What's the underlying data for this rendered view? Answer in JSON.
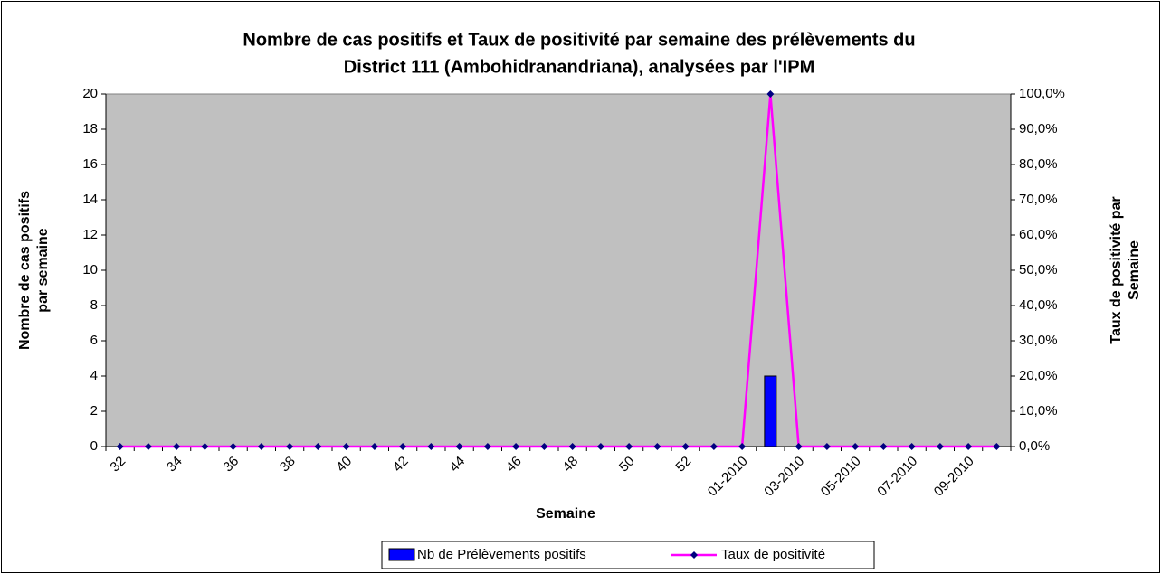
{
  "chart_data": {
    "type": "bar_line",
    "title": [
      "Nombre de cas positifs et Taux de positivité par semaine des prélèvements du",
      "District 111 (Ambohidranandriana), analysées par l'IPM"
    ],
    "x_label": "Semaine",
    "y_label": [
      "Nombre de cas positifs",
      "par semaine"
    ],
    "y2_label": [
      "Taux de positivité par",
      "Semaine"
    ],
    "categories": [
      "32",
      null,
      "34",
      null,
      "36",
      null,
      "38",
      null,
      "40",
      null,
      "42",
      null,
      "44",
      null,
      "46",
      null,
      "48",
      null,
      "50",
      null,
      "52",
      null,
      "01-2010",
      null,
      "03-2010",
      null,
      "05-2010",
      null,
      "07-2010",
      null,
      "09-2010",
      null
    ],
    "series": [
      {
        "name": "Nb de Prélèvements positifs",
        "type": "bar",
        "color": "#0000ff",
        "values": [
          0,
          0,
          0,
          0,
          0,
          0,
          0,
          0,
          0,
          0,
          0,
          0,
          0,
          0,
          0,
          0,
          0,
          0,
          0,
          0,
          0,
          0,
          0,
          4,
          0,
          0,
          0,
          0,
          0,
          0,
          0,
          0
        ]
      },
      {
        "name": "Taux de positivité",
        "type": "line",
        "axis": "y2",
        "color": "#ff00ff",
        "marker_color": "#000080",
        "values": [
          0,
          0,
          0,
          0,
          0,
          0,
          0,
          0,
          0,
          0,
          0,
          0,
          0,
          0,
          0,
          0,
          0,
          0,
          0,
          0,
          0,
          0,
          0,
          100,
          0,
          0,
          0,
          0,
          0,
          0,
          0,
          0
        ]
      }
    ],
    "ylim": [
      0,
      20
    ],
    "yticks": [
      0,
      2,
      4,
      6,
      8,
      10,
      12,
      14,
      16,
      18,
      20
    ],
    "y2lim": [
      0,
      100
    ],
    "y2ticks": [
      {
        "value": 0,
        "label": "0,0%"
      },
      {
        "value": 10,
        "label": "10,0%"
      },
      {
        "value": 20,
        "label": "20,0%"
      },
      {
        "value": 30,
        "label": "30,0%"
      },
      {
        "value": 40,
        "label": "40,0%"
      },
      {
        "value": 50,
        "label": "50,0%"
      },
      {
        "value": 60,
        "label": "60,0%"
      },
      {
        "value": 70,
        "label": "70,0%"
      },
      {
        "value": 80,
        "label": "80,0%"
      },
      {
        "value": 90,
        "label": "90,0%"
      },
      {
        "value": 100,
        "label": "100,0%"
      }
    ],
    "plot_background": "#c0c0c0",
    "legend": "bottom"
  }
}
